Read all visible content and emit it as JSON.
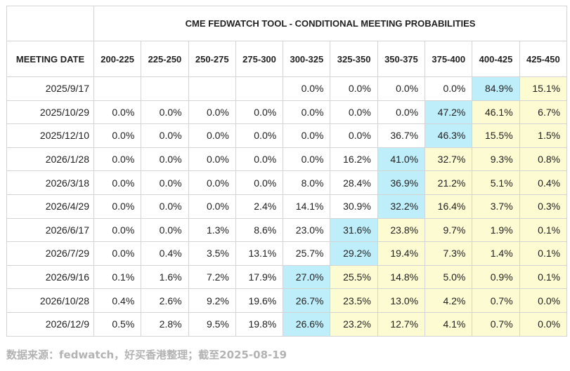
{
  "chart_data": {
    "type": "table",
    "title": "CME FEDWATCH TOOL - CONDITIONAL MEETING PROBABILITIES",
    "row_header": "MEETING DATE",
    "columns": [
      "200-225",
      "225-250",
      "250-275",
      "275-300",
      "300-325",
      "325-350",
      "350-375",
      "375-400",
      "400-425",
      "425-450"
    ],
    "rows": [
      {
        "date": "2025/9/17",
        "values": [
          "",
          "",
          "",
          "",
          "0.0%",
          "0.0%",
          "0.0%",
          "0.0%",
          "84.9%",
          "15.1%"
        ],
        "max_col": 8
      },
      {
        "date": "2025/10/29",
        "values": [
          "0.0%",
          "0.0%",
          "0.0%",
          "0.0%",
          "0.0%",
          "0.0%",
          "0.0%",
          "47.2%",
          "46.1%",
          "6.7%"
        ],
        "max_col": 7
      },
      {
        "date": "2025/12/10",
        "values": [
          "0.0%",
          "0.0%",
          "0.0%",
          "0.0%",
          "0.0%",
          "0.0%",
          "36.7%",
          "46.3%",
          "15.5%",
          "1.5%"
        ],
        "max_col": 7
      },
      {
        "date": "2026/1/28",
        "values": [
          "0.0%",
          "0.0%",
          "0.0%",
          "0.0%",
          "0.0%",
          "16.2%",
          "41.0%",
          "32.7%",
          "9.3%",
          "0.8%"
        ],
        "max_col": 6
      },
      {
        "date": "2026/3/18",
        "values": [
          "0.0%",
          "0.0%",
          "0.0%",
          "0.0%",
          "8.0%",
          "28.4%",
          "36.9%",
          "21.2%",
          "5.1%",
          "0.4%"
        ],
        "max_col": 6
      },
      {
        "date": "2026/4/29",
        "values": [
          "0.0%",
          "0.0%",
          "0.0%",
          "2.4%",
          "14.1%",
          "30.9%",
          "32.2%",
          "16.4%",
          "3.7%",
          "0.3%"
        ],
        "max_col": 6
      },
      {
        "date": "2026/6/17",
        "values": [
          "0.0%",
          "0.0%",
          "1.3%",
          "8.6%",
          "23.0%",
          "31.6%",
          "23.8%",
          "9.7%",
          "1.9%",
          "0.1%"
        ],
        "max_col": 5
      },
      {
        "date": "2026/7/29",
        "values": [
          "0.0%",
          "0.4%",
          "3.5%",
          "13.1%",
          "25.7%",
          "29.2%",
          "19.4%",
          "7.3%",
          "1.4%",
          "0.1%"
        ],
        "max_col": 5
      },
      {
        "date": "2026/9/16",
        "values": [
          "0.1%",
          "1.6%",
          "7.2%",
          "17.9%",
          "27.0%",
          "25.5%",
          "14.8%",
          "5.0%",
          "0.9%",
          "0.1%"
        ],
        "max_col": 4
      },
      {
        "date": "2026/10/28",
        "values": [
          "0.4%",
          "2.6%",
          "9.2%",
          "19.6%",
          "26.7%",
          "23.5%",
          "13.0%",
          "4.2%",
          "0.7%",
          "0.0%"
        ],
        "max_col": 4
      },
      {
        "date": "2026/12/9",
        "values": [
          "0.5%",
          "2.8%",
          "9.5%",
          "19.8%",
          "26.6%",
          "23.2%",
          "12.7%",
          "4.1%",
          "0.7%",
          "0.0%"
        ],
        "max_col": 4
      }
    ]
  },
  "colors": {
    "highlight_max": "#bfeefb",
    "highlight_above_max": "#fdfbd2",
    "border": "#d4d4d4"
  },
  "source_note": "数据来源：fedwatch，好买香港整理；截至2025-08-19"
}
